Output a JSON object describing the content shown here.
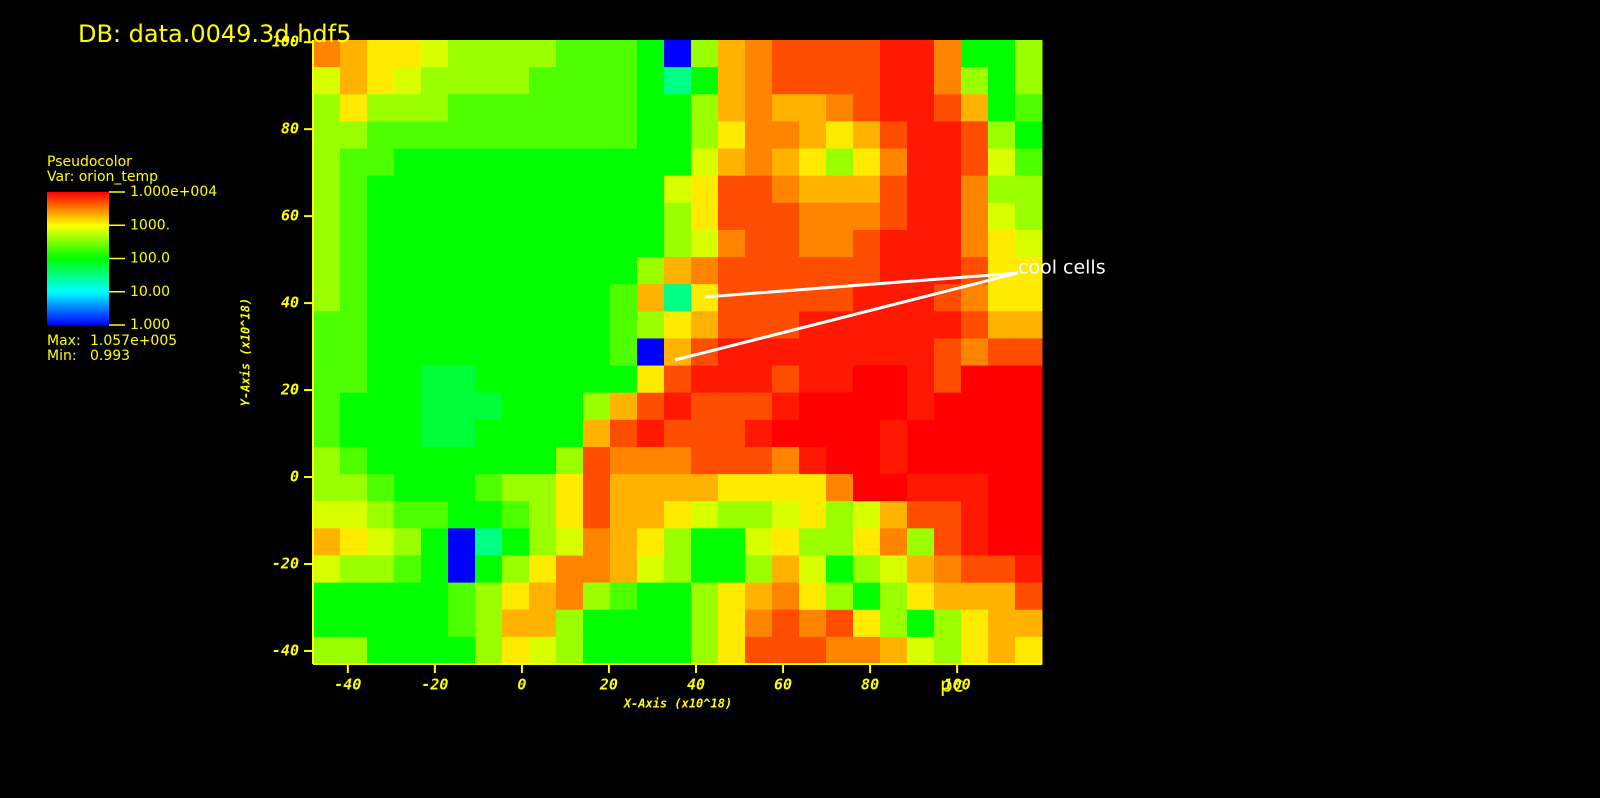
{
  "chart_data": {
    "type": "heatmap",
    "title": "DB: data.0049.3d.hdf5",
    "x_label": "X-Axis (x10^18)",
    "y_label": "Y-Axis (x10^18)",
    "unit_label": "pc",
    "annotation": "cool cells",
    "xlim": [
      -48,
      119.5
    ],
    "ylim": [
      -43,
      100.5
    ],
    "xticks": [
      -40,
      -20,
      0,
      20,
      40,
      60,
      80,
      100
    ],
    "yticks": [
      -40,
      -20,
      0,
      20,
      40,
      60,
      80,
      100
    ],
    "scale": "log",
    "colors": [
      "#0000ff",
      "#00ffff",
      "#00ff00",
      "#ffff00",
      "#ff0000"
    ],
    "clim": [
      1,
      10000
    ],
    "legend": {
      "title": "Pseudocolor",
      "variable": "Var: orion_temp",
      "ticks": [
        {
          "value": 10000,
          "label": "1.000e+004"
        },
        {
          "value": 1000,
          "label": "1000."
        },
        {
          "value": 100,
          "label": "100.0"
        },
        {
          "value": 10,
          "label": "10.00"
        },
        {
          "value": 1,
          "label": "1.000"
        }
      ],
      "max_text": "Max:",
      "max": {
        "value": 105700,
        "label": "1.057e+005"
      },
      "min_text": "Min:",
      "min": 0.993
    },
    "values": [
      [
        3000,
        2000,
        1200,
        1200,
        700,
        400,
        400,
        400,
        400,
        200,
        200,
        200,
        100,
        1,
        400,
        2000,
        3000,
        5000,
        5000,
        5000,
        5000,
        8000,
        8000,
        3000,
        100,
        100,
        400
      ],
      [
        700,
        2000,
        1200,
        700,
        400,
        400,
        400,
        400,
        200,
        200,
        200,
        200,
        100,
        30,
        100,
        2000,
        3000,
        5000,
        5000,
        5000,
        5000,
        8000,
        8000,
        3000,
        400,
        100,
        400
      ],
      [
        400,
        1200,
        400,
        400,
        400,
        200,
        200,
        200,
        200,
        200,
        200,
        200,
        100,
        100,
        400,
        2000,
        3000,
        2000,
        2000,
        3000,
        5000,
        8000,
        8000,
        5000,
        2000,
        100,
        200
      ],
      [
        400,
        400,
        200,
        200,
        200,
        200,
        200,
        200,
        200,
        200,
        200,
        200,
        100,
        100,
        400,
        1200,
        3000,
        3000,
        2000,
        1200,
        2000,
        5000,
        8000,
        8000,
        5000,
        400,
        100
      ],
      [
        400,
        200,
        200,
        100,
        100,
        100,
        100,
        100,
        100,
        100,
        100,
        100,
        100,
        100,
        700,
        2000,
        3000,
        2000,
        1200,
        400,
        1200,
        3000,
        8000,
        8000,
        5000,
        700,
        200
      ],
      [
        400,
        200,
        100,
        100,
        100,
        100,
        100,
        100,
        100,
        100,
        100,
        100,
        100,
        700,
        1200,
        5000,
        5000,
        3000,
        2000,
        2000,
        2000,
        5000,
        8000,
        8000,
        3000,
        400,
        400
      ],
      [
        400,
        200,
        100,
        100,
        100,
        100,
        100,
        100,
        100,
        100,
        100,
        100,
        100,
        400,
        1200,
        5000,
        5000,
        5000,
        3000,
        3000,
        3000,
        5000,
        8000,
        8000,
        3000,
        700,
        400
      ],
      [
        400,
        200,
        100,
        100,
        100,
        100,
        100,
        100,
        100,
        100,
        100,
        100,
        100,
        400,
        700,
        3000,
        5000,
        5000,
        3000,
        3000,
        5000,
        8000,
        8000,
        8000,
        3000,
        1200,
        700
      ],
      [
        400,
        200,
        100,
        100,
        100,
        100,
        100,
        100,
        100,
        100,
        100,
        100,
        400,
        2000,
        3000,
        5000,
        5000,
        5000,
        5000,
        5000,
        5000,
        8000,
        8000,
        8000,
        5000,
        1200,
        1200
      ],
      [
        400,
        200,
        100,
        100,
        100,
        100,
        100,
        100,
        100,
        100,
        100,
        200,
        2000,
        30,
        1200,
        5000,
        5000,
        5000,
        5000,
        5000,
        8000,
        8000,
        8000,
        5000,
        3000,
        1200,
        1200
      ],
      [
        200,
        200,
        100,
        100,
        100,
        100,
        100,
        100,
        100,
        100,
        100,
        200,
        400,
        1200,
        2000,
        5000,
        5000,
        5000,
        8000,
        8000,
        8000,
        8000,
        8000,
        8000,
        5000,
        2000,
        2000
      ],
      [
        200,
        200,
        100,
        100,
        100,
        100,
        100,
        100,
        100,
        100,
        100,
        200,
        1,
        2000,
        5000,
        8000,
        8000,
        8000,
        8000,
        8000,
        8000,
        8000,
        8000,
        5000,
        3000,
        5000,
        5000
      ],
      [
        200,
        200,
        100,
        100,
        60,
        60,
        100,
        100,
        100,
        100,
        100,
        100,
        1200,
        5000,
        8000,
        8000,
        8000,
        5000,
        8000,
        8000,
        12000,
        12000,
        8000,
        5000,
        12000,
        12000,
        12000
      ],
      [
        200,
        100,
        100,
        100,
        60,
        60,
        60,
        100,
        100,
        100,
        400,
        2000,
        5000,
        8000,
        5000,
        5000,
        5000,
        8000,
        12000,
        12000,
        12000,
        12000,
        8000,
        12000,
        12000,
        12000,
        12000
      ],
      [
        200,
        100,
        100,
        100,
        60,
        60,
        100,
        100,
        100,
        100,
        2000,
        5000,
        8000,
        5000,
        5000,
        5000,
        8000,
        12000,
        12000,
        12000,
        12000,
        8000,
        12000,
        12000,
        12000,
        12000,
        12000
      ],
      [
        400,
        200,
        100,
        100,
        100,
        100,
        100,
        100,
        100,
        400,
        5000,
        3000,
        3000,
        3000,
        5000,
        5000,
        5000,
        3000,
        8000,
        12000,
        12000,
        8000,
        12000,
        12000,
        12000,
        12000,
        12000
      ],
      [
        400,
        400,
        200,
        100,
        100,
        100,
        200,
        400,
        400,
        1200,
        5000,
        2000,
        2000,
        2000,
        2000,
        1200,
        1200,
        1200,
        1200,
        3000,
        12000,
        12000,
        8000,
        8000,
        8000,
        12000,
        12000
      ],
      [
        700,
        700,
        400,
        200,
        200,
        100,
        100,
        200,
        400,
        1200,
        5000,
        2000,
        2000,
        1200,
        700,
        400,
        400,
        700,
        1200,
        400,
        700,
        2000,
        5000,
        5000,
        8000,
        12000,
        12000
      ],
      [
        2000,
        1200,
        700,
        400,
        100,
        1,
        30,
        100,
        400,
        700,
        3000,
        2000,
        1200,
        400,
        100,
        100,
        700,
        1200,
        400,
        400,
        1200,
        3000,
        400,
        5000,
        8000,
        12000,
        12000
      ],
      [
        700,
        400,
        400,
        200,
        100,
        1,
        100,
        400,
        1200,
        3000,
        3000,
        2000,
        700,
        400,
        100,
        100,
        400,
        2000,
        700,
        100,
        400,
        700,
        2000,
        3000,
        5000,
        5000,
        8000
      ],
      [
        100,
        100,
        100,
        100,
        100,
        200,
        400,
        1200,
        2000,
        3000,
        400,
        200,
        100,
        100,
        400,
        1200,
        2000,
        3000,
        1200,
        400,
        100,
        400,
        1200,
        2000,
        2000,
        2000,
        5000
      ],
      [
        100,
        100,
        100,
        100,
        100,
        200,
        400,
        2000,
        2000,
        400,
        100,
        100,
        100,
        100,
        400,
        1200,
        3000,
        5000,
        3000,
        5000,
        1200,
        400,
        100,
        400,
        1200,
        2000,
        2000
      ],
      [
        400,
        400,
        100,
        100,
        100,
        100,
        400,
        1200,
        700,
        400,
        100,
        100,
        100,
        100,
        400,
        1200,
        5000,
        5000,
        5000,
        3000,
        3000,
        2000,
        700,
        400,
        1200,
        2000,
        1200
      ]
    ]
  }
}
